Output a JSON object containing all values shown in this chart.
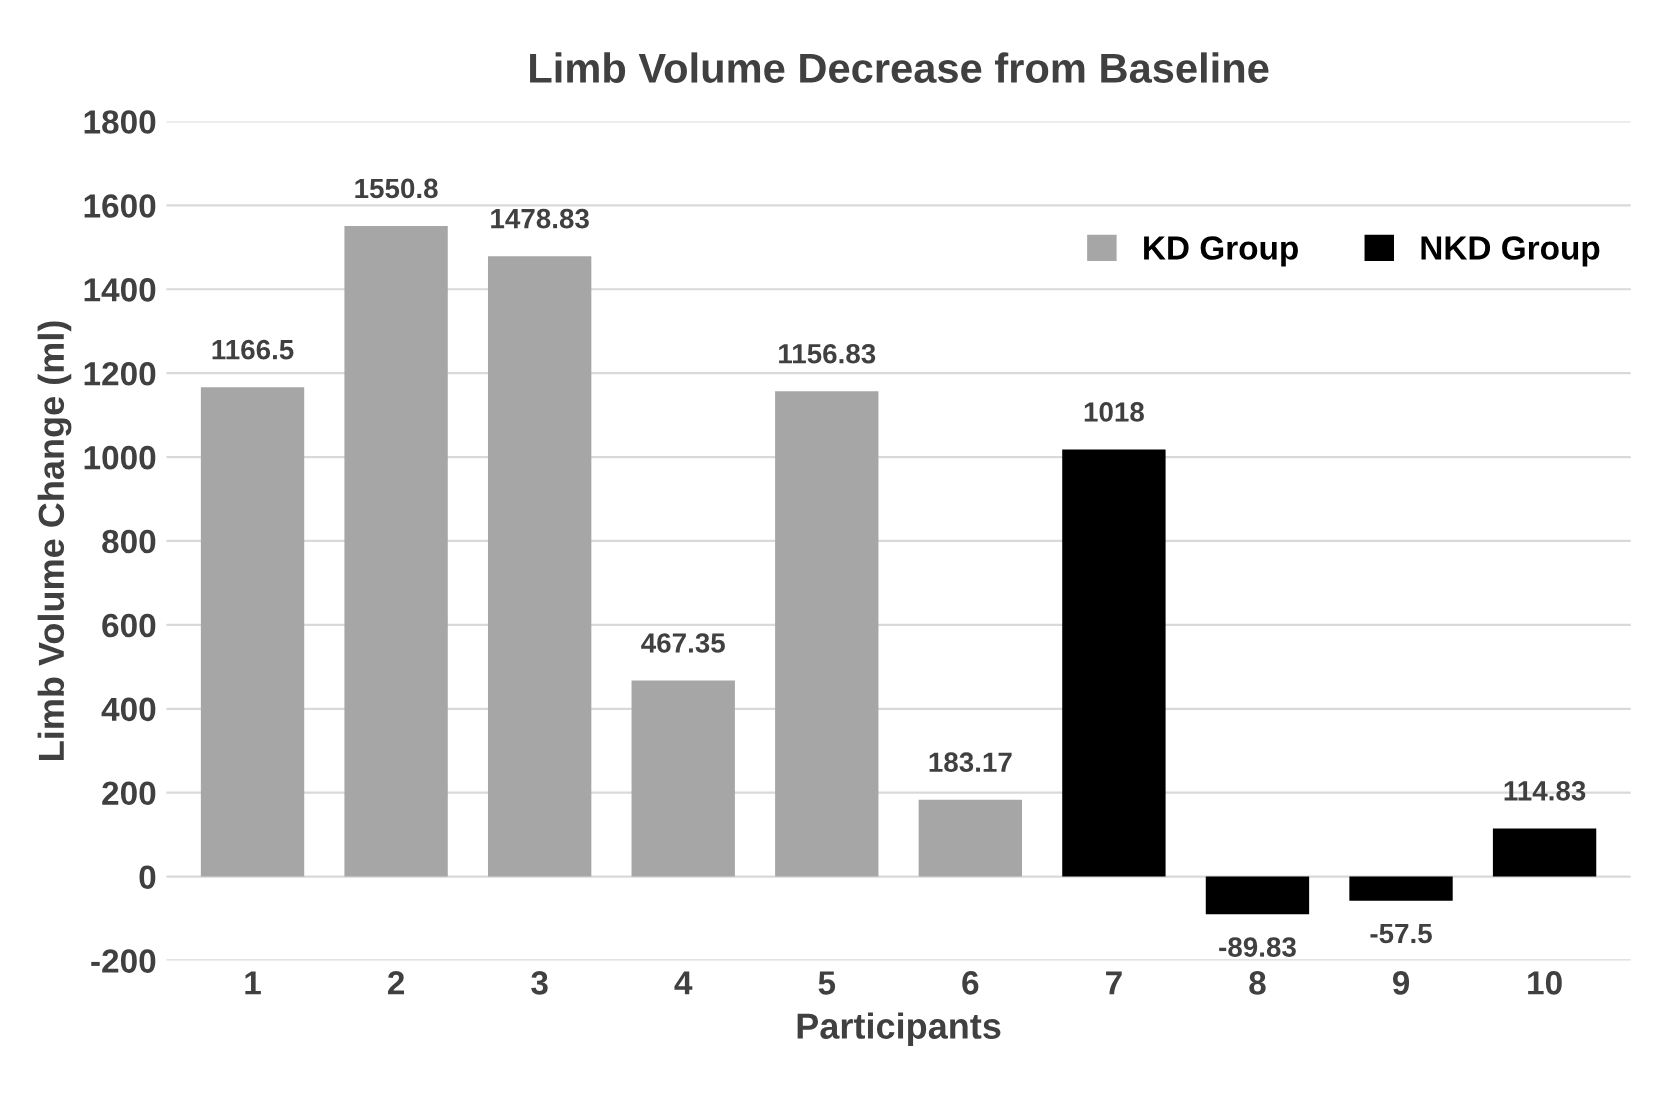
{
  "chart_data": {
    "type": "bar",
    "title": "Limb Volume Decrease from Baseline",
    "xlabel": "Participants",
    "ylabel": "Limb Volume Change (ml)",
    "categories": [
      "1",
      "2",
      "3",
      "4",
      "5",
      "6",
      "7",
      "8",
      "9",
      "10"
    ],
    "series": [
      {
        "name": "KD Group",
        "color": "#a6a6a6",
        "values": [
          1166.5,
          1550.8,
          1478.83,
          467.35,
          1156.83,
          183.17,
          null,
          null,
          null,
          null
        ]
      },
      {
        "name": "NKD Group",
        "color": "#000000",
        "values": [
          null,
          null,
          null,
          null,
          null,
          null,
          1018,
          -89.83,
          -57.5,
          114.83
        ]
      }
    ],
    "ylim": [
      -200,
      1800
    ],
    "yticks": [
      -200,
      0,
      200,
      400,
      600,
      800,
      1000,
      1200,
      1400,
      1600,
      1800
    ],
    "grid": "y",
    "legend": "top right",
    "data_labels": true
  }
}
